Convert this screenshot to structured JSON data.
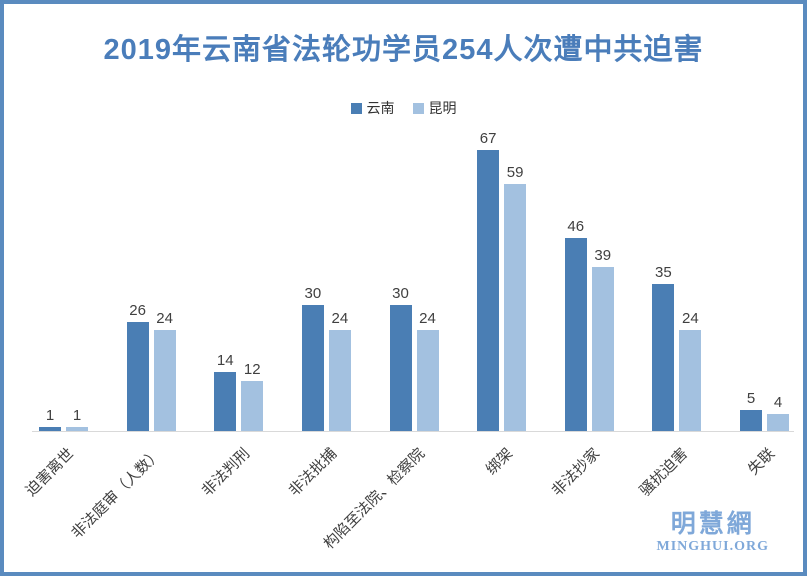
{
  "window": {
    "border_color": "#5a8bbf",
    "background_color": "#ffffff"
  },
  "title": {
    "text": "2019年云南省法轮功学员254人次遭中共迫害",
    "color": "#4a7dba"
  },
  "chart_data": {
    "type": "bar",
    "title": "2019年云南省法轮功学员254人次遭中共迫害",
    "categories": [
      "迫害离世",
      "非法庭审（人数）",
      "非法判刑",
      "非法批捕",
      "构陷至法院、检察院",
      "绑架",
      "非法抄家",
      "骚扰迫害",
      "失联"
    ],
    "series": [
      {
        "name": "云南",
        "color": "#4a7eb4",
        "values": [
          1,
          26,
          14,
          30,
          30,
          67,
          46,
          35,
          5
        ]
      },
      {
        "name": "昆明",
        "color": "#a3c1e0",
        "values": [
          1,
          24,
          12,
          24,
          24,
          59,
          39,
          24,
          4
        ]
      }
    ],
    "xlabel": "",
    "ylabel": "",
    "ylim": [
      0,
      70
    ],
    "grid": false,
    "legend_position": "top-center",
    "value_labels": true,
    "baseline_color": "#d9d9d9",
    "category_label_rotation_deg": 45
  },
  "watermark": {
    "cjk": "明慧網",
    "latin": "MINGHUI.ORG",
    "color": "#7fa8d9"
  }
}
